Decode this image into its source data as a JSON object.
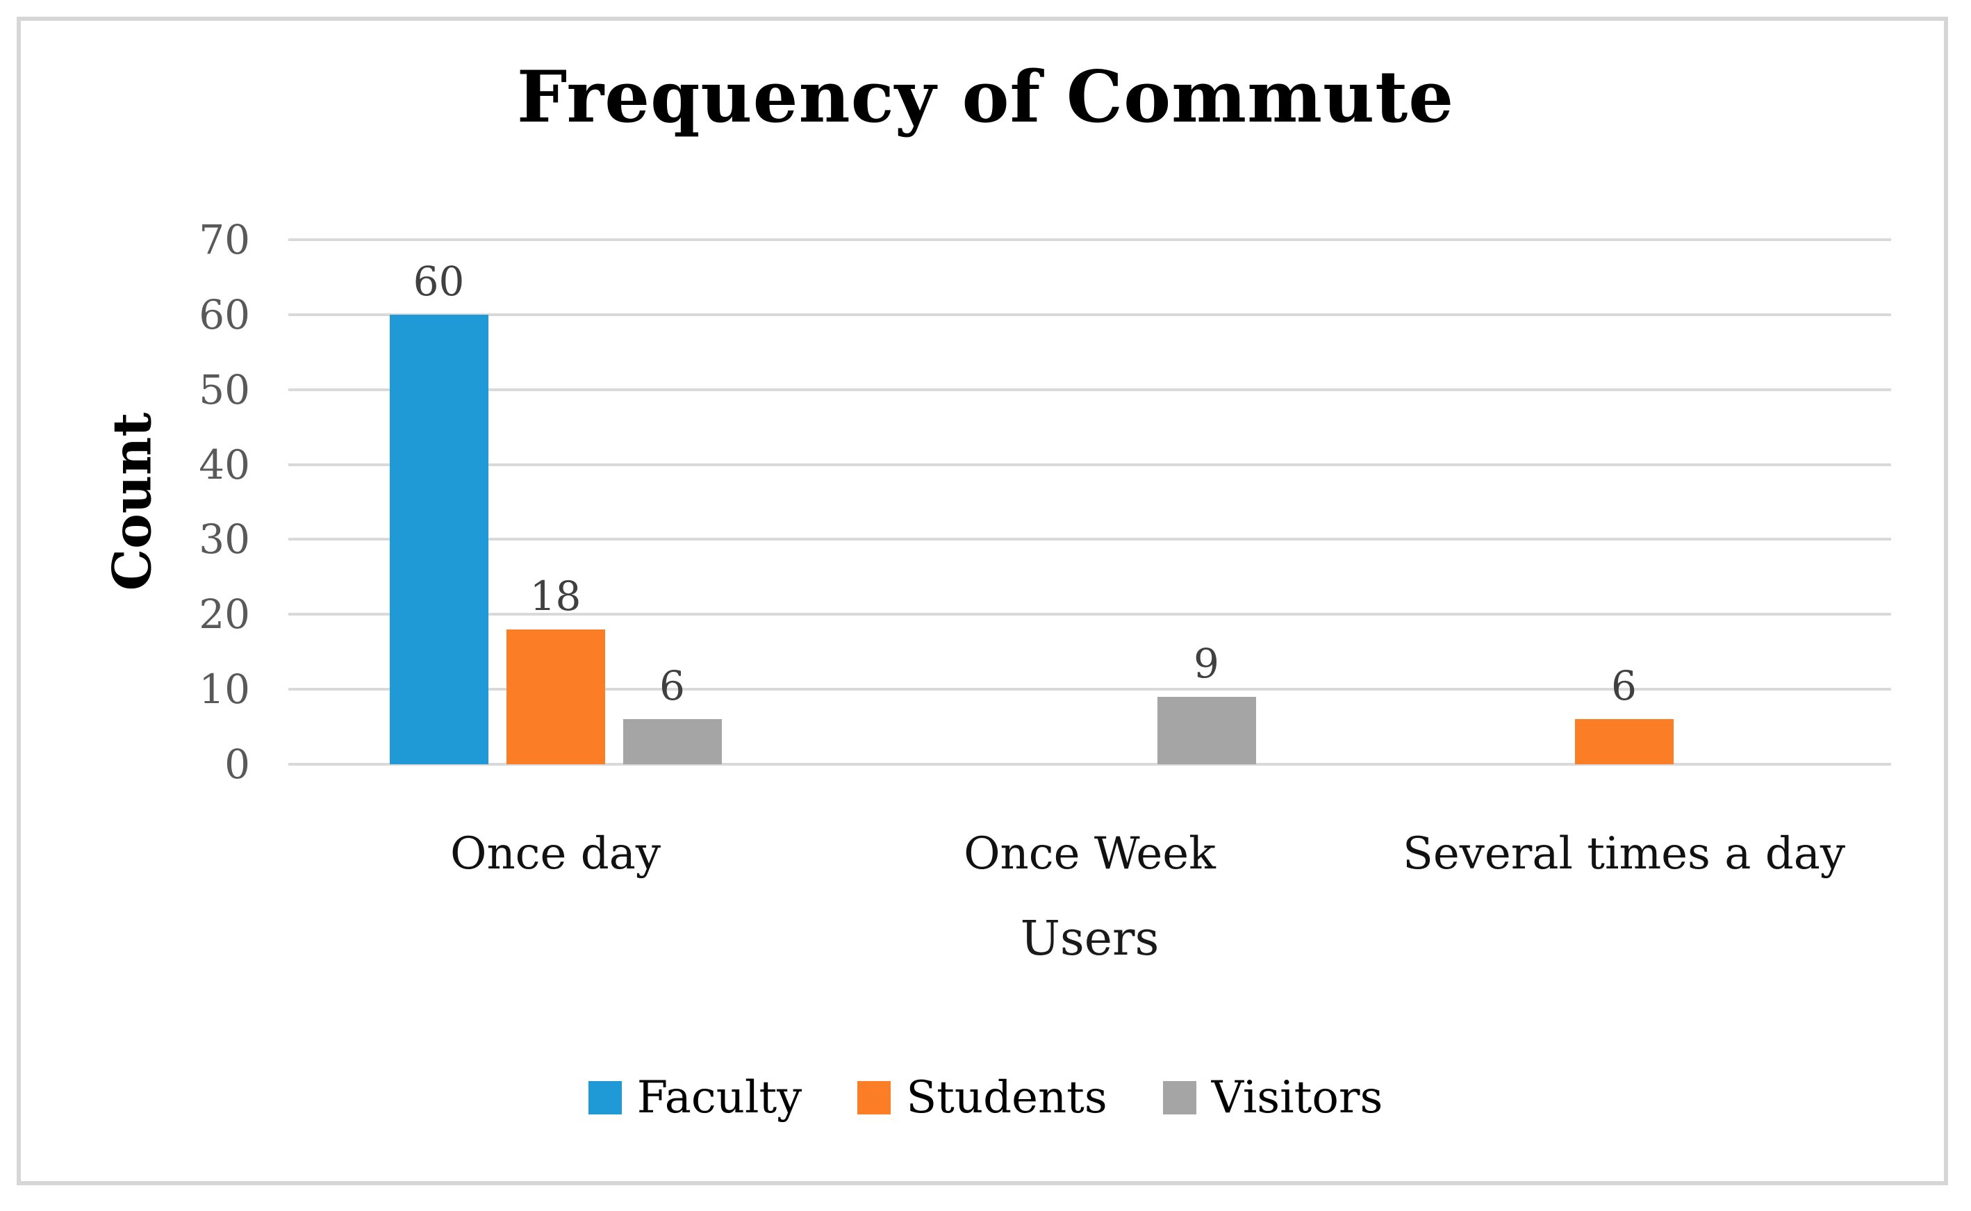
{
  "figure": {
    "background_color": "#ffffff",
    "border_color": "#d6d6d6"
  },
  "chart_data": {
    "type": "bar",
    "title": "Frequency of Commute",
    "xlabel": "Users",
    "ylabel": "Count",
    "categories": [
      "Once day",
      "Once Week",
      "Several times a day"
    ],
    "series": [
      {
        "name": "Faculty",
        "color": "#1f9ad6",
        "values": [
          60,
          0,
          0
        ]
      },
      {
        "name": "Students",
        "color": "#fb7d26",
        "values": [
          18,
          0,
          6
        ]
      },
      {
        "name": "Visitors",
        "color": "#a5a5a5",
        "values": [
          6,
          9,
          0
        ]
      }
    ],
    "ylim": [
      0,
      70
    ],
    "yticks": [
      0,
      10,
      20,
      30,
      40,
      50,
      60,
      70
    ],
    "grid": true,
    "gridline_color": "#d9d9d9",
    "tick_label_color": "#595959",
    "data_label_color": "#404040",
    "show_data_labels": true,
    "legend_position": "bottom"
  }
}
